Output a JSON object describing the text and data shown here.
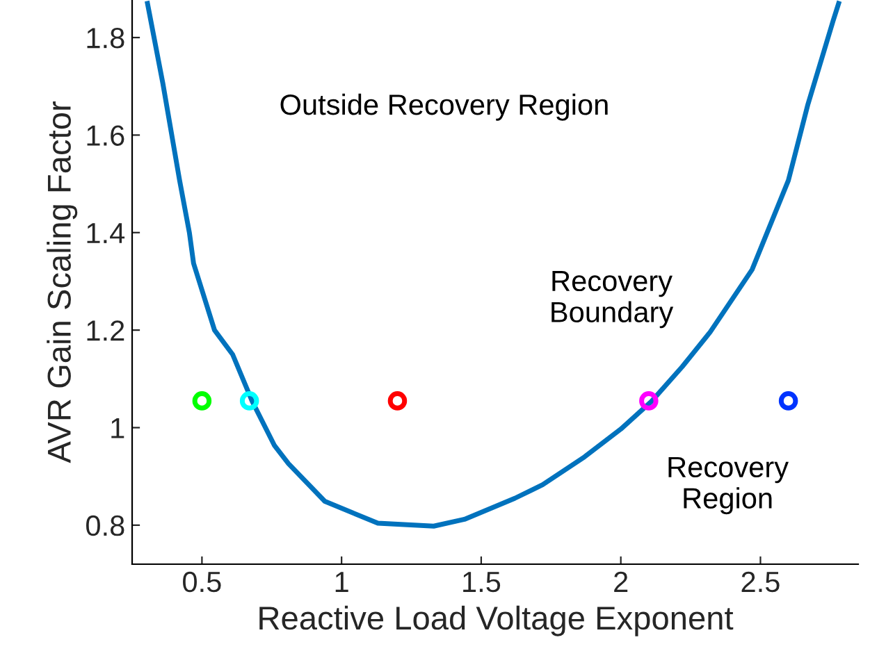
{
  "chart_data": {
    "type": "line",
    "xlabel": "Reactive Load Voltage Exponent",
    "ylabel": "AVR Gain Scaling Factor",
    "xlim": [
      0.25,
      2.85
    ],
    "ylim": [
      0.72,
      1.877
    ],
    "xticks": [
      0.5,
      1,
      1.5,
      2,
      2.5
    ],
    "yticks": [
      0.8,
      1,
      1.2,
      1.4,
      1.6,
      1.8
    ],
    "grid": false,
    "legend": false,
    "series": [
      {
        "color": "#0072bd",
        "marker": "none",
        "x": [
          0.305,
          0.36,
          0.42,
          0.455,
          0.47,
          0.545,
          0.61,
          0.68,
          0.76,
          0.81,
          0.94,
          1.13,
          1.33,
          1.44,
          1.62,
          1.72,
          1.87,
          2.0,
          2.11,
          2.22,
          2.32,
          2.47,
          2.6,
          2.67,
          2.76,
          2.78
        ],
        "values": [
          1.87,
          1.706,
          1.507,
          1.4,
          1.337,
          1.2,
          1.15,
          1.054,
          0.963,
          0.926,
          0.849,
          0.804,
          0.798,
          0.812,
          0.855,
          0.883,
          0.94,
          0.997,
          1.054,
          1.125,
          1.196,
          1.324,
          1.507,
          1.663,
          1.834,
          1.87
        ]
      },
      {
        "type": "scatter",
        "marker": "circle",
        "x": [
          0.5,
          0.67,
          1.2,
          2.1,
          2.6
        ],
        "values": [
          1.055,
          1.055,
          1.055,
          1.055,
          1.055
        ],
        "colors": [
          "#00ff00",
          "#00ffff",
          "#ff0000",
          "#ff00ff",
          "#0033ff"
        ]
      }
    ],
    "annotations": [
      "Outside Recovery Region",
      "Recovery\nBoundary",
      "Recovery\nRegion"
    ]
  }
}
